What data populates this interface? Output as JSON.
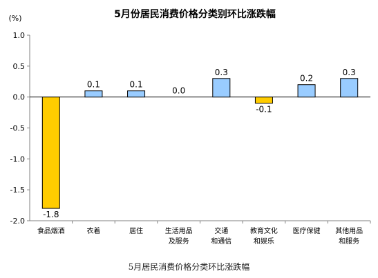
{
  "chart_data": {
    "type": "bar",
    "title": "5月份居民消费价格分类别环比涨跌幅",
    "unit_label": "(%)",
    "categories": [
      [
        "食品烟酒"
      ],
      [
        "衣着"
      ],
      [
        "居住"
      ],
      [
        "生活用品",
        "及服务"
      ],
      [
        "交通",
        "和通信"
      ],
      [
        "教育文化",
        "和娱乐"
      ],
      [
        "医疗保健"
      ],
      [
        "其他用品",
        "和服务"
      ]
    ],
    "values": [
      -1.8,
      0.1,
      0.1,
      0.0,
      0.3,
      -0.1,
      0.2,
      0.3
    ],
    "data_labels": [
      "-1.8",
      "0.1",
      "0.1",
      "0.0",
      "0.3",
      "-0.1",
      "0.2",
      "0.3"
    ],
    "yticks": [
      "1.0",
      "0.5",
      "0.0",
      "-0.5",
      "-1.0",
      "-1.5",
      "-2.0"
    ],
    "ylim": [
      -2.0,
      1.0
    ],
    "grid": false,
    "colors": {
      "positive": "#99ccff",
      "negative": "#ffcc00",
      "bar_stroke": "#000000",
      "axis": "#808080"
    }
  },
  "caption": "5月居民消费价格分类环比涨跌幅"
}
